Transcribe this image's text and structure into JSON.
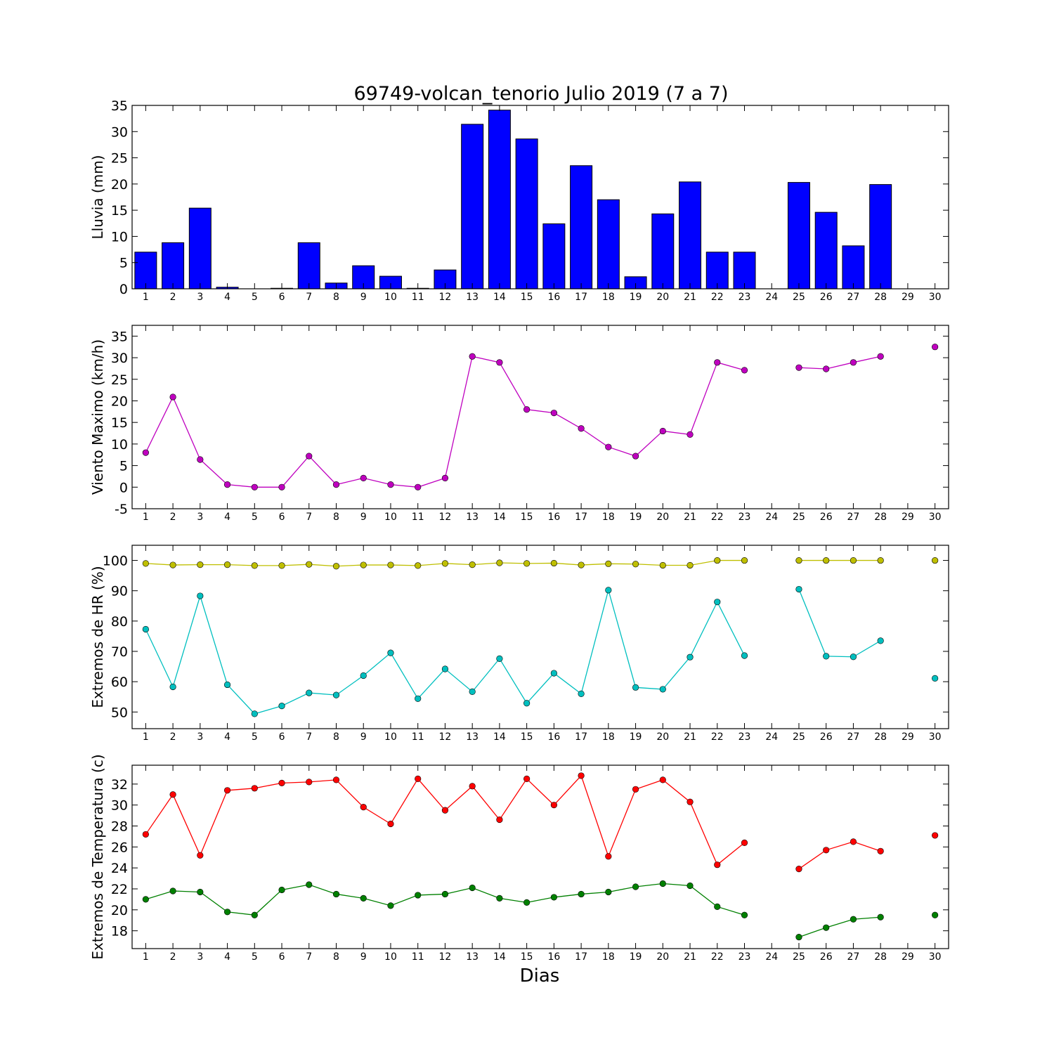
{
  "figure": {
    "title": "69749-volcan_tenorio Julio 2019  (7 a 7)",
    "xlabel": "Dias"
  },
  "chart_data": [
    {
      "type": "bar",
      "ylabel": "Lluvia (mm)",
      "ylim": [
        0,
        35
      ],
      "yticks": [
        0,
        5,
        10,
        15,
        20,
        25,
        30,
        35
      ],
      "xlim": [
        0.5,
        30.5
      ],
      "x": [
        1,
        2,
        3,
        4,
        5,
        6,
        7,
        8,
        9,
        10,
        11,
        12,
        13,
        14,
        15,
        16,
        17,
        18,
        19,
        20,
        21,
        22,
        23,
        24,
        25,
        26,
        27,
        28,
        29,
        30
      ],
      "series": [
        {
          "color": "#0000ff",
          "values": [
            7.0,
            8.8,
            15.4,
            0.3,
            0,
            0.1,
            8.8,
            1.1,
            4.4,
            2.4,
            0.1,
            3.6,
            31.4,
            34.1,
            28.6,
            12.4,
            23.5,
            17.0,
            2.3,
            14.3,
            20.4,
            7.0,
            7.0,
            0,
            20.3,
            14.6,
            8.2,
            19.9,
            0,
            0
          ]
        }
      ]
    },
    {
      "type": "line",
      "ylabel": "Viento Maximo (km/h)",
      "ylim": [
        -5,
        37.5
      ],
      "yticks": [
        -5,
        0,
        5,
        10,
        15,
        20,
        25,
        30,
        35
      ],
      "xlim": [
        0.5,
        30.5
      ],
      "x": [
        1,
        2,
        3,
        4,
        5,
        6,
        7,
        8,
        9,
        10,
        11,
        12,
        13,
        14,
        15,
        16,
        17,
        18,
        19,
        20,
        21,
        22,
        23,
        24,
        25,
        26,
        27,
        28,
        29,
        30
      ],
      "series": [
        {
          "color": "#bf00bf",
          "values": [
            8.0,
            20.9,
            6.4,
            0.6,
            0,
            0,
            7.2,
            0.6,
            2.1,
            0.6,
            0,
            2.1,
            30.3,
            28.9,
            18.0,
            17.2,
            13.6,
            9.3,
            7.2,
            13.0,
            12.2,
            28.9,
            27.1,
            null,
            27.7,
            27.4,
            28.9,
            30.3,
            null,
            32.5
          ]
        }
      ]
    },
    {
      "type": "line",
      "ylabel": "Extremos de HR (%)",
      "ylim": [
        44.5,
        105
      ],
      "yticks": [
        50,
        60,
        70,
        80,
        90,
        100
      ],
      "xlim": [
        0.5,
        30.5
      ],
      "x": [
        1,
        2,
        3,
        4,
        5,
        6,
        7,
        8,
        9,
        10,
        11,
        12,
        13,
        14,
        15,
        16,
        17,
        18,
        19,
        20,
        21,
        22,
        23,
        24,
        25,
        26,
        27,
        28,
        29,
        30
      ],
      "series": [
        {
          "color": "#bfbf00",
          "values": [
            99.0,
            98.5,
            98.6,
            98.6,
            98.3,
            98.3,
            98.7,
            98.1,
            98.5,
            98.5,
            98.3,
            99.0,
            98.6,
            99.2,
            99.0,
            99.1,
            98.5,
            98.9,
            98.8,
            98.4,
            98.4,
            100,
            100,
            null,
            100,
            100,
            100,
            100,
            null,
            100
          ]
        },
        {
          "color": "#00bfbf",
          "values": [
            77.3,
            58.3,
            88.3,
            59.0,
            49.4,
            52.0,
            56.3,
            55.6,
            62.0,
            69.5,
            54.4,
            64.2,
            56.7,
            67.6,
            52.9,
            62.8,
            56.0,
            90.2,
            58.1,
            57.5,
            68.1,
            86.3,
            68.6,
            null,
            90.5,
            68.4,
            68.2,
            73.5,
            null,
            61.1
          ]
        }
      ]
    },
    {
      "type": "line",
      "ylabel": "Extremos de Temperatura (c)",
      "ylim": [
        16.3,
        33.8
      ],
      "yticks": [
        18,
        20,
        22,
        24,
        26,
        28,
        30,
        32
      ],
      "xlim": [
        0.5,
        30.5
      ],
      "x": [
        1,
        2,
        3,
        4,
        5,
        6,
        7,
        8,
        9,
        10,
        11,
        12,
        13,
        14,
        15,
        16,
        17,
        18,
        19,
        20,
        21,
        22,
        23,
        24,
        25,
        26,
        27,
        28,
        29,
        30
      ],
      "series": [
        {
          "color": "#ff0000",
          "values": [
            27.2,
            31.0,
            25.2,
            31.4,
            31.6,
            32.1,
            32.2,
            32.4,
            29.8,
            28.2,
            32.5,
            29.5,
            31.8,
            28.6,
            32.5,
            30.0,
            32.8,
            25.1,
            31.5,
            32.4,
            30.3,
            24.3,
            26.4,
            null,
            23.9,
            25.7,
            26.5,
            25.6,
            null,
            27.1
          ]
        },
        {
          "color": "#008000",
          "values": [
            21.0,
            21.8,
            21.7,
            19.8,
            19.5,
            21.9,
            22.4,
            21.5,
            21.1,
            20.4,
            21.4,
            21.5,
            22.1,
            21.1,
            20.7,
            21.2,
            21.5,
            21.7,
            22.2,
            22.5,
            22.3,
            20.3,
            19.5,
            null,
            17.4,
            18.3,
            19.1,
            19.3,
            null,
            19.5
          ]
        }
      ]
    }
  ]
}
